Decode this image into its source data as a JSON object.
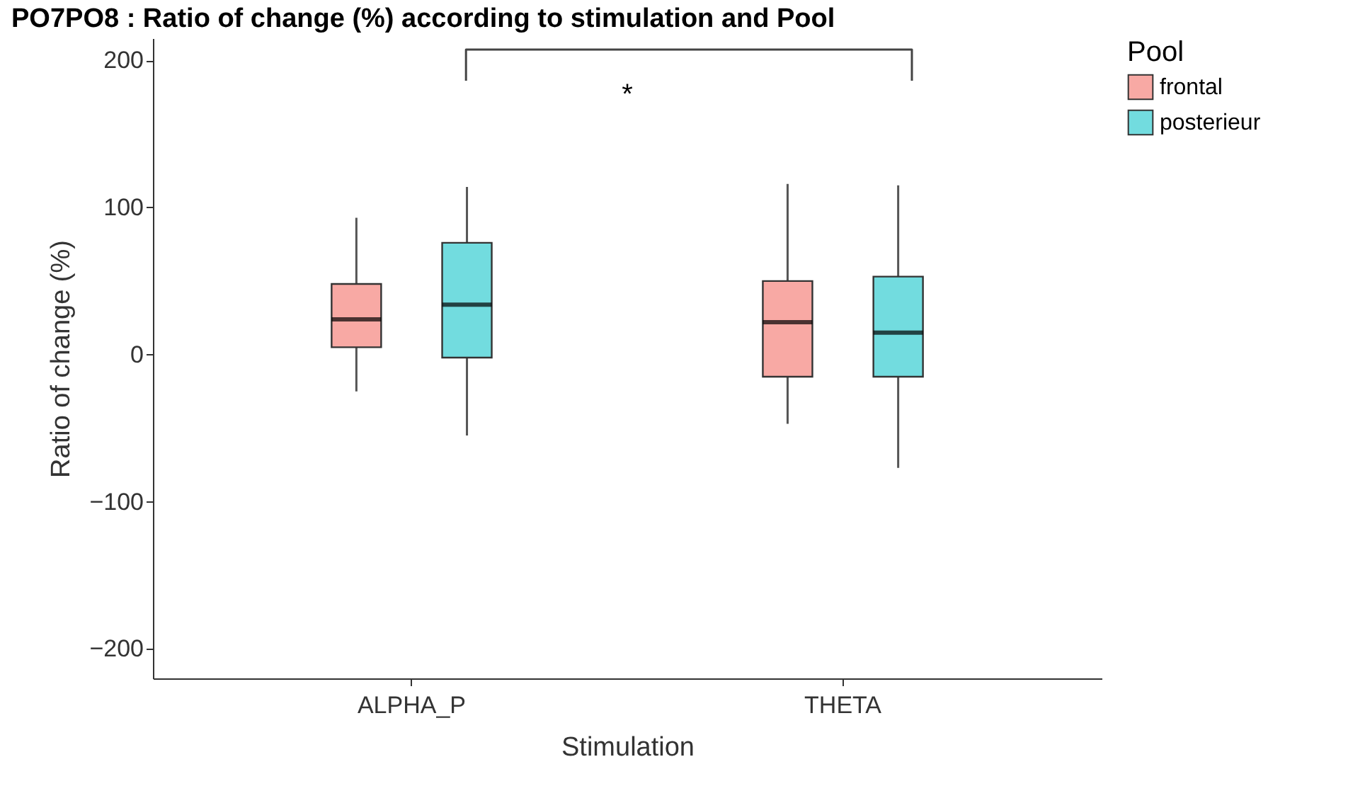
{
  "chart_data": {
    "type": "box",
    "title": "PO7PO8 : Ratio of change (%) according to stimulation and Pool",
    "xlabel": "Stimulation",
    "ylabel": "Ratio of change (%)",
    "legend_title": "Pool",
    "legend": "right",
    "grid": false,
    "categories": [
      "ALPHA_P",
      "THETA"
    ],
    "ylim": [
      -220,
      215
    ],
    "yticks": [
      -200,
      -100,
      0,
      100,
      200
    ],
    "series": [
      {
        "name": "frontal",
        "color": "#f8a9a4",
        "boxes": [
          {
            "low": -25,
            "q1": 5,
            "median": 24,
            "q3": 48,
            "high": 93
          },
          {
            "low": -47,
            "q1": -15,
            "median": 22,
            "q3": 50,
            "high": 116
          }
        ]
      },
      {
        "name": "posterieur",
        "color": "#72dcdf",
        "boxes": [
          {
            "low": -55,
            "q1": -2,
            "median": 34,
            "q3": 76,
            "high": 114
          },
          {
            "low": -77,
            "q1": -15,
            "median": 15,
            "q3": 53,
            "high": 115
          }
        ]
      }
    ],
    "annotations": [
      "*"
    ]
  }
}
